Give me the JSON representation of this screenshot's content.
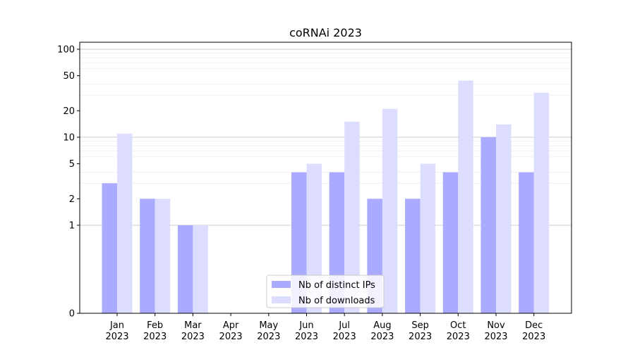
{
  "chart_data": {
    "type": "bar",
    "title": "coRNAi 2023",
    "xlabel": "",
    "ylabel": "",
    "y_scale": "symlog",
    "yticks": [
      0,
      1,
      2,
      5,
      10,
      20,
      50,
      100
    ],
    "ylim": [
      0,
      120
    ],
    "grid": "horizontal",
    "legend_position": "bottom-center",
    "categories": [
      {
        "month": "Jan",
        "year": "2023"
      },
      {
        "month": "Feb",
        "year": "2023"
      },
      {
        "month": "Mar",
        "year": "2023"
      },
      {
        "month": "Apr",
        "year": "2023"
      },
      {
        "month": "May",
        "year": "2023"
      },
      {
        "month": "Jun",
        "year": "2023"
      },
      {
        "month": "Jul",
        "year": "2023"
      },
      {
        "month": "Aug",
        "year": "2023"
      },
      {
        "month": "Sep",
        "year": "2023"
      },
      {
        "month": "Oct",
        "year": "2023"
      },
      {
        "month": "Nov",
        "year": "2023"
      },
      {
        "month": "Dec",
        "year": "2023"
      }
    ],
    "series": [
      {
        "name": "Nb of distinct IPs",
        "color": "#aaaaff",
        "values": [
          3,
          2,
          1,
          0,
          0,
          4,
          4,
          2,
          2,
          4,
          10,
          4
        ]
      },
      {
        "name": "Nb of downloads",
        "color": "#ddddff",
        "values": [
          11,
          2,
          1,
          0,
          0,
          5,
          15,
          21,
          5,
          44,
          14,
          32
        ]
      }
    ]
  }
}
